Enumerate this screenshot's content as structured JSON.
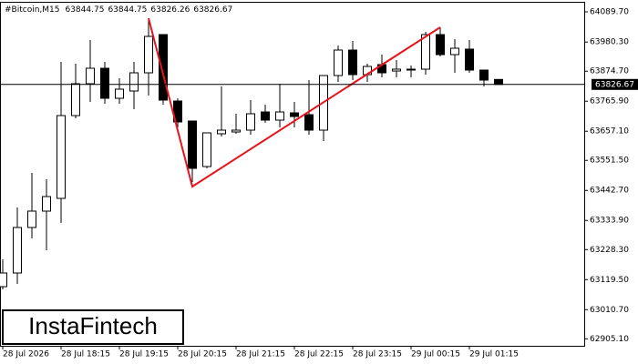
{
  "chart_data": {
    "type": "candlestick",
    "title": "#Bitcoin,M15",
    "logo": "InstaFintech",
    "categories": [
      "28 Jul 2026",
      null,
      null,
      null,
      "28 Jul 18:15",
      null,
      null,
      null,
      "28 Jul 19:15",
      null,
      null,
      null,
      "28 Jul 20:15",
      null,
      null,
      null,
      "28 Jul 21:15",
      null,
      null,
      null,
      "28 Jul 22:15",
      null,
      null,
      null,
      "28 Jul 23:15",
      null,
      null,
      null,
      "29 Jul 00:15",
      null,
      null,
      null,
      "29 Jul 01:15",
      null,
      null
    ],
    "series": {
      "up_color": "#ffffff",
      "down_color": "#000000",
      "edge_color": "#000000",
      "open": [
        63094.0,
        63143.5,
        63308.3,
        63367.7,
        63413.8,
        63713.8,
        63829.2,
        63885.3,
        63776.5,
        63802.9,
        63868.8,
        64007.3,
        63766.6,
        63694.1,
        63529.2,
        63647.9,
        63654.5,
        63661.1,
        63727.0,
        63697.4,
        63723.7,
        63717.1,
        63661.1,
        63858.9,
        63951.2,
        63862.2,
        63898.5,
        63875.4,
        63878.7,
        63882.0,
        64007.3,
        63934.7,
        63954.5,
        63878.7,
        63844.75
      ],
      "high": [
        63192.9,
        63380.8,
        63506.1,
        63483.1,
        63908.4,
        63901.8,
        63987.5,
        63908.4,
        63849.0,
        63908.4,
        64066.6,
        64007.3,
        63776.5,
        63694.1,
        63651.2,
        63819.3,
        63720.4,
        63769.9,
        63753.4,
        63829.2,
        63763.3,
        63842.4,
        63858.9,
        63967.7,
        63984.2,
        63901.8,
        63934.7,
        63915.0,
        63895.2,
        64017.2,
        64033.7,
        63990.8,
        63987.5,
        63878.7,
        63844.75
      ],
      "low": [
        63084.1,
        63103.9,
        63268.8,
        63225.9,
        63324.8,
        63704.0,
        63763.3,
        63756.7,
        63756.7,
        63736.9,
        63786.4,
        63753.4,
        63671.0,
        63473.2,
        63522.6,
        63638.0,
        63647.9,
        63644.6,
        63687.5,
        63671.0,
        63671.0,
        63644.6,
        63621.5,
        63835.8,
        63842.4,
        63835.8,
        63852.3,
        63852.3,
        63852.3,
        63862.2,
        63928.2,
        63868.8,
        63868.8,
        63819.3,
        63826.26
      ],
      "close": [
        63143.5,
        63308.3,
        63367.7,
        63420.4,
        63713.8,
        63829.2,
        63885.3,
        63776.5,
        63809.5,
        63868.8,
        64000.7,
        63769.9,
        63690.8,
        63522.6,
        63651.2,
        63661.1,
        63661.1,
        63720.4,
        63697.4,
        63727.0,
        63710.5,
        63661.1,
        63858.9,
        63951.2,
        63862.2,
        63891.9,
        63868.8,
        63882.0,
        63882.0,
        64007.3,
        63934.7,
        63957.8,
        63878.7,
        63842.4,
        63826.67
      ]
    },
    "ylim": [
      62879.7,
      64122.7
    ],
    "yticks": [
      {
        "value": 64089.7,
        "label": "64089.70"
      },
      {
        "value": 63980.3,
        "label": "63980.30"
      },
      {
        "value": 63874.7,
        "label": "63874.70"
      },
      {
        "value": 63765.9,
        "label": "63765.90"
      },
      {
        "value": 63657.1,
        "label": "63657.10"
      },
      {
        "value": 63551.5,
        "label": "63551.50"
      },
      {
        "value": 63442.7,
        "label": "63442.70"
      },
      {
        "value": 63333.9,
        "label": "63333.90"
      },
      {
        "value": 63228.3,
        "label": "63228.30"
      },
      {
        "value": 63119.5,
        "label": "63119.50"
      },
      {
        "value": 63010.7,
        "label": "63010.70"
      },
      {
        "value": 62905.1,
        "label": "62905.10"
      }
    ],
    "grid": false,
    "pattern_color": "#e8141c"
  }
}
